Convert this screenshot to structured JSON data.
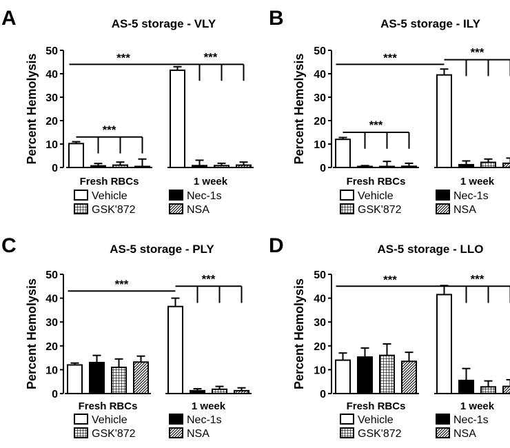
{
  "chart_data": [
    {
      "type": "bar",
      "panel_letter": "A",
      "title": "AS-5 storage - VLY",
      "ylabel": "Percent Hemolysis",
      "ylim": [
        0,
        50
      ],
      "yticks": [
        "0",
        "10",
        "20",
        "30",
        "40",
        "50"
      ],
      "group_labels": [
        "Fresh RBCs",
        "1 week"
      ],
      "series": [
        {
          "name": "Vehicle",
          "pattern": "white",
          "values": [
            10.2,
            41.5
          ],
          "errors": [
            0.8,
            1.5
          ]
        },
        {
          "name": "Nec-1s",
          "pattern": "black",
          "values": [
            0.7,
            0.8
          ],
          "errors": [
            1.0,
            2.3
          ]
        },
        {
          "name": "GSK'872",
          "pattern": "grid",
          "values": [
            1.0,
            0.8
          ],
          "errors": [
            1.3,
            1.0
          ]
        },
        {
          "name": "NSA",
          "pattern": "hatch",
          "values": [
            0.4,
            1.0
          ],
          "errors": [
            3.2,
            1.3
          ]
        }
      ],
      "significance": [
        {
          "label": "***",
          "type": "long",
          "level": 44
        },
        {
          "label": "***",
          "type": "fan",
          "group": 1,
          "level": 44
        },
        {
          "label": "***",
          "type": "fan",
          "group": 0,
          "level": 13
        }
      ]
    },
    {
      "type": "bar",
      "panel_letter": "B",
      "title": "AS-5 storage - ILY",
      "ylabel": "Percent Hemolysis",
      "ylim": [
        0,
        50
      ],
      "yticks": [
        "0",
        "10",
        "20",
        "30",
        "40",
        "50"
      ],
      "group_labels": [
        "Fresh RBCs",
        "1 week"
      ],
      "series": [
        {
          "name": "Vehicle",
          "pattern": "white",
          "values": [
            12.0,
            39.5
          ],
          "errors": [
            0.8,
            2.5
          ]
        },
        {
          "name": "Nec-1s",
          "pattern": "black",
          "values": [
            0.0,
            1.2
          ],
          "errors": [
            0.8,
            1.6
          ]
        },
        {
          "name": "GSK'872",
          "pattern": "grid",
          "values": [
            0.3,
            2.2
          ],
          "errors": [
            2.3,
            1.4
          ]
        },
        {
          "name": "NSA",
          "pattern": "hatch",
          "values": [
            0.5,
            1.8
          ],
          "errors": [
            1.3,
            2.2
          ]
        }
      ],
      "significance": [
        {
          "label": "***",
          "type": "long",
          "level": 44
        },
        {
          "label": "***",
          "type": "fan",
          "group": 1,
          "level": 46
        },
        {
          "label": "***",
          "type": "fan",
          "group": 0,
          "level": 15
        }
      ]
    },
    {
      "type": "bar",
      "panel_letter": "C",
      "title": "AS-5 storage - PLY",
      "ylabel": "Percent Hemolysis",
      "ylim": [
        0,
        50
      ],
      "yticks": [
        "0",
        "10",
        "20",
        "30",
        "40",
        "50"
      ],
      "group_labels": [
        "Fresh RBCs",
        "1 week"
      ],
      "series": [
        {
          "name": "Vehicle",
          "pattern": "white",
          "values": [
            12.0,
            36.5
          ],
          "errors": [
            0.8,
            3.5
          ]
        },
        {
          "name": "Nec-1s",
          "pattern": "black",
          "values": [
            13.0,
            1.2
          ],
          "errors": [
            3.0,
            0.8
          ]
        },
        {
          "name": "GSK'872",
          "pattern": "grid",
          "values": [
            11.0,
            1.8
          ],
          "errors": [
            3.5,
            1.2
          ]
        },
        {
          "name": "NSA",
          "pattern": "hatch",
          "values": [
            13.2,
            1.2
          ],
          "errors": [
            2.5,
            1.2
          ]
        }
      ],
      "significance": [
        {
          "label": "***",
          "type": "long",
          "level": 43
        },
        {
          "label": "***",
          "type": "fan",
          "group": 1,
          "level": 45
        }
      ]
    },
    {
      "type": "bar",
      "panel_letter": "D",
      "title": "AS-5 storage - LLO",
      "ylabel": "Percent Hemolysis",
      "ylim": [
        0,
        50
      ],
      "yticks": [
        "0",
        "10",
        "20",
        "30",
        "40",
        "50"
      ],
      "group_labels": [
        "Fresh RBCs",
        "1 week"
      ],
      "series": [
        {
          "name": "Vehicle",
          "pattern": "white",
          "values": [
            14.0,
            41.5
          ],
          "errors": [
            3.0,
            3.8
          ]
        },
        {
          "name": "Nec-1s",
          "pattern": "black",
          "values": [
            15.3,
            5.5
          ],
          "errors": [
            3.8,
            5.0
          ]
        },
        {
          "name": "GSK'872",
          "pattern": "grid",
          "values": [
            16.0,
            2.8
          ],
          "errors": [
            4.8,
            2.5
          ]
        },
        {
          "name": "NSA",
          "pattern": "hatch",
          "values": [
            13.5,
            3.0
          ],
          "errors": [
            3.8,
            2.8
          ]
        }
      ],
      "significance": [
        {
          "label": "***",
          "type": "long",
          "level": 45
        },
        {
          "label": "***",
          "type": "fan",
          "group": 1,
          "level": 45
        }
      ]
    }
  ]
}
